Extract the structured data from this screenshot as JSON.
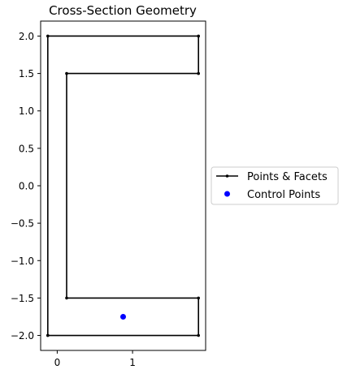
{
  "chart_data": {
    "type": "line",
    "title": "Cross-Section Geometry",
    "xlabel": "",
    "ylabel": "",
    "xlim": [
      -0.22,
      1.97
    ],
    "ylim": [
      -2.2,
      2.2
    ],
    "xticks": [
      {
        "value": 0,
        "label": "0"
      },
      {
        "value": 1,
        "label": "1"
      }
    ],
    "yticks": [
      {
        "value": 2.0,
        "label": "2.0"
      },
      {
        "value": 1.5,
        "label": "1.5"
      },
      {
        "value": 1.0,
        "label": "1.0"
      },
      {
        "value": 0.5,
        "label": "0.5"
      },
      {
        "value": 0.0,
        "label": "0.0"
      },
      {
        "value": -0.5,
        "label": "−0.5"
      },
      {
        "value": -1.0,
        "label": "−1.0"
      },
      {
        "value": -1.5,
        "label": "−1.5"
      },
      {
        "value": -2.0,
        "label": "−2.0"
      }
    ],
    "grid": false,
    "legend_position": "outside-right",
    "series": [
      {
        "name": "Points & Facets",
        "kind": "line-with-points",
        "color": "#000000",
        "x": [
          -0.125,
          1.875,
          1.875,
          0.125,
          0.125,
          1.875,
          1.875,
          -0.125,
          -0.125
        ],
        "y": [
          -2.0,
          -2.0,
          -1.5,
          -1.5,
          1.5,
          1.5,
          2.0,
          2.0,
          -2.0
        ]
      },
      {
        "name": "Control Points",
        "kind": "scatter",
        "color": "#0000ff",
        "x": [
          0.875
        ],
        "y": [
          -1.75
        ]
      }
    ]
  }
}
